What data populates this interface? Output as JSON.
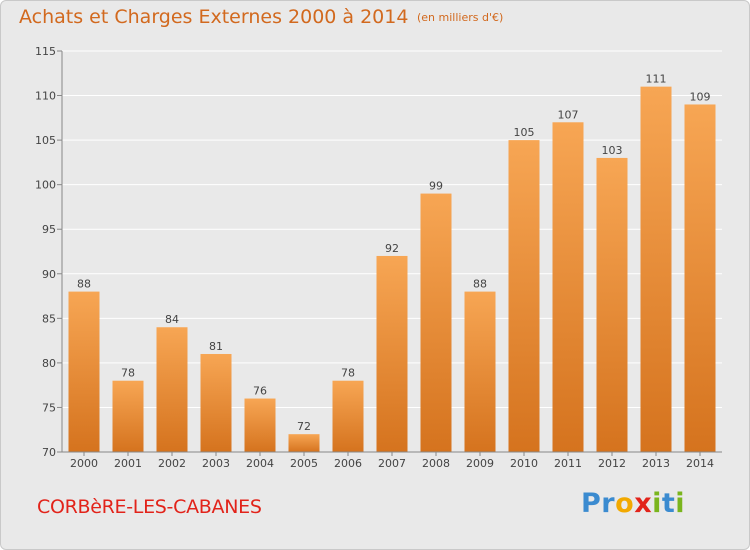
{
  "title": "Achats et Charges Externes 2000 à 2014",
  "unit_note": "(en milliers d'€)",
  "commune": "CORBèRE-LES-CABANES",
  "logo": {
    "letters": [
      "P",
      "r",
      "o",
      "x",
      "i",
      "t",
      "i"
    ],
    "colors": [
      "#3b8bd0",
      "#3b8bd0",
      "#f2a900",
      "#e2231a",
      "#7ab51d",
      "#3b8bd0",
      "#7ab51d"
    ]
  },
  "colors": {
    "bar_light": "#f7a654",
    "bar_dark": "#d5731e",
    "text": "#d2691e",
    "commune": "#e2231a"
  },
  "chart_data": {
    "type": "bar",
    "categories": [
      "2000",
      "2001",
      "2002",
      "2003",
      "2004",
      "2005",
      "2006",
      "2007",
      "2008",
      "2009",
      "2010",
      "2011",
      "2012",
      "2013",
      "2014"
    ],
    "values": [
      88,
      78,
      84,
      81,
      76,
      72,
      78,
      92,
      99,
      88,
      105,
      107,
      103,
      111,
      109
    ],
    "data_labels": [
      "88",
      "78",
      "84",
      "81",
      "76",
      "72",
      "78",
      "92",
      "99",
      "88",
      "105",
      "107",
      "103",
      "111",
      "109"
    ],
    "title": "Achats et Charges Externes 2000 à 2014",
    "xlabel": "",
    "ylabel": "",
    "ylim": [
      70,
      115
    ],
    "yticks": [
      70,
      75,
      80,
      85,
      90,
      95,
      100,
      105,
      110,
      115
    ],
    "grid": true
  }
}
